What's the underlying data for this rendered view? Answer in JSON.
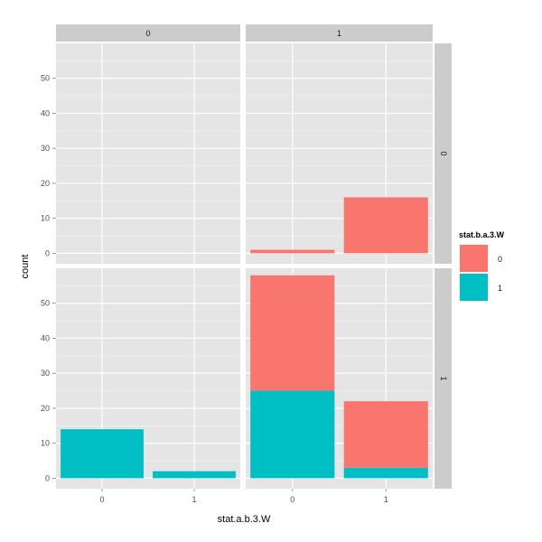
{
  "chart_data": {
    "type": "bar",
    "stacked": true,
    "xlabel": "stat.a.b.3.W",
    "ylabel": "count",
    "categories": [
      "0",
      "1"
    ],
    "ylim": [
      -3,
      60
    ],
    "yticks": [
      0,
      10,
      20,
      30,
      40,
      50
    ],
    "grid": true,
    "colors": {
      "0": "#F8766D",
      "1": "#00BFC4"
    },
    "legend": {
      "title": "stat.b.a.3.W",
      "position": "right",
      "entries": [
        {
          "label": "0",
          "color": "#F8766D"
        },
        {
          "label": "1",
          "color": "#00BFC4"
        }
      ]
    },
    "facet_cols": [
      "0",
      "1"
    ],
    "facet_rows": [
      "0",
      "1"
    ],
    "panels": [
      {
        "col": "0",
        "row": "0",
        "series": [
          {
            "name": "0",
            "values": [
              0,
              0
            ]
          },
          {
            "name": "1",
            "values": [
              0,
              0
            ]
          }
        ]
      },
      {
        "col": "1",
        "row": "0",
        "series": [
          {
            "name": "0",
            "values": [
              1,
              16
            ]
          },
          {
            "name": "1",
            "values": [
              0,
              0
            ]
          }
        ]
      },
      {
        "col": "0",
        "row": "1",
        "series": [
          {
            "name": "0",
            "values": [
              0,
              0
            ]
          },
          {
            "name": "1",
            "values": [
              14,
              2
            ]
          }
        ]
      },
      {
        "col": "1",
        "row": "1",
        "series": [
          {
            "name": "0",
            "values": [
              33,
              19
            ]
          },
          {
            "name": "1",
            "values": [
              25,
              3
            ]
          }
        ]
      }
    ]
  }
}
